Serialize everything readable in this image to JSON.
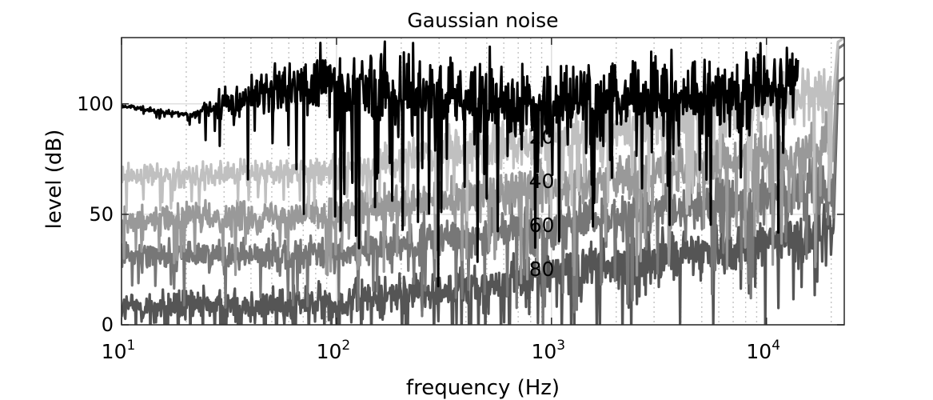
{
  "chart_data": {
    "type": "line",
    "title": "Gaussian noise",
    "xlabel": "frequency (Hz)",
    "ylabel": "level (dB)",
    "xscale": "log",
    "xlim": [
      10,
      23000
    ],
    "ylim": [
      0,
      130
    ],
    "grid": "on (major solid, minor dotted x)",
    "x_ticks": [
      10,
      100,
      1000,
      10000
    ],
    "x_tick_labels": [
      {
        "base": "10",
        "exp": "1"
      },
      {
        "base": "10",
        "exp": "2"
      },
      {
        "base": "10",
        "exp": "3"
      },
      {
        "base": "10",
        "exp": "4"
      }
    ],
    "y_ticks": [
      0,
      50,
      100
    ],
    "y_tick_labels": [
      "0",
      "50",
      "100"
    ],
    "series": [
      {
        "color": "#000000",
        "x_range": [
          10,
          14000
        ],
        "x_anchor": [
          10,
          20,
          40,
          80,
          160,
          1000,
          14000
        ],
        "level_anchor": [
          99,
          95,
          103,
          110,
          106,
          101,
          108
        ],
        "spread_anchor": [
          1,
          1,
          10,
          14,
          17,
          16,
          14
        ],
        "end_level": null
      },
      {
        "color": "#c0c0c0",
        "x_range": [
          10,
          23000
        ],
        "x_anchor": [
          10,
          100,
          1000,
          20000
        ],
        "level_anchor": [
          67,
          70,
          85,
          105
        ],
        "spread_anchor": [
          4,
          6,
          10,
          11
        ],
        "end_level": 128
      },
      {
        "color": "#999999",
        "x_range": [
          10,
          23000
        ],
        "x_anchor": [
          10,
          100,
          1000,
          20000
        ],
        "level_anchor": [
          48,
          50,
          63,
          80
        ],
        "spread_anchor": [
          5,
          7,
          10,
          11
        ],
        "end_level": 128
      },
      {
        "color": "#777777",
        "x_range": [
          10,
          23000
        ],
        "x_anchor": [
          10,
          100,
          1000,
          20000
        ],
        "level_anchor": [
          32,
          32,
          45,
          62
        ],
        "spread_anchor": [
          5,
          7,
          10,
          11
        ],
        "end_level": 125
      },
      {
        "color": "#555555",
        "x_range": [
          10,
          23000
        ],
        "x_anchor": [
          10,
          100,
          1000,
          20000
        ],
        "level_anchor": [
          8,
          10,
          23,
          42
        ],
        "spread_anchor": [
          6,
          8,
          10,
          11
        ],
        "end_level": 110
      }
    ],
    "annotations": [
      {
        "text": "20",
        "x": 900,
        "y": 82
      },
      {
        "text": "40",
        "x": 900,
        "y": 62
      },
      {
        "text": "60",
        "x": 900,
        "y": 42
      },
      {
        "text": "80",
        "x": 900,
        "y": 22
      }
    ]
  }
}
